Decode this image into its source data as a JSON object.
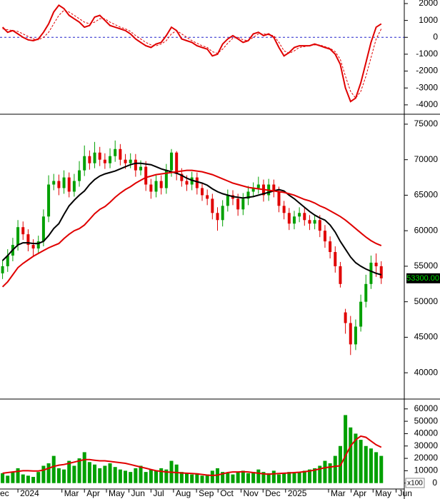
{
  "chart_data": [
    {
      "type": "line",
      "ylim": [
        -4470,
        2210
      ],
      "yticks": [
        2000,
        1000,
        0,
        -1000,
        -2000,
        -3000,
        -4000
      ],
      "zero_line": true,
      "zero_color": "#2222cc",
      "series": [
        {
          "color": "#e00000",
          "dashed": false,
          "values": [
            600,
            300,
            400,
            200,
            0,
            -150,
            -200,
            -100,
            300,
            800,
            1500,
            1900,
            1700,
            1300,
            1100,
            900,
            600,
            700,
            1200,
            1300,
            1000,
            700,
            600,
            500,
            400,
            200,
            -100,
            -300,
            -500,
            -600,
            -400,
            -300,
            100,
            600,
            400,
            -100,
            -200,
            -300,
            -500,
            -600,
            -700,
            -1100,
            -1000,
            -400,
            -100,
            100,
            -100,
            -300,
            -200,
            200,
            300,
            100,
            200,
            0,
            -600,
            -1100,
            -900,
            -600,
            -500,
            -500,
            -500,
            -400,
            -500,
            -600,
            -700,
            -1000,
            -1600,
            -3000,
            -3800,
            -3600,
            -2700,
            -1500,
            -300,
            600,
            800
          ]
        },
        {
          "color": "#e00000",
          "dashed": true,
          "values": [
            500,
            450,
            400,
            350,
            200,
            50,
            -100,
            -150,
            0,
            300,
            800,
            1300,
            1600,
            1500,
            1300,
            1100,
            900,
            800,
            900,
            1100,
            1100,
            900,
            750,
            600,
            500,
            350,
            100,
            -100,
            -300,
            -450,
            -500,
            -400,
            -200,
            200,
            400,
            200,
            0,
            -200,
            -350,
            -500,
            -600,
            -850,
            -950,
            -700,
            -350,
            -50,
            0,
            -150,
            -200,
            0,
            200,
            200,
            150,
            100,
            -300,
            -800,
            -950,
            -800,
            -600,
            -550,
            -500,
            -450,
            -450,
            -550,
            -650,
            -850,
            -1300,
            -2300,
            -3200,
            -3600,
            -3200,
            -2300,
            -1200,
            -100,
            500
          ]
        }
      ]
    },
    {
      "type": "candlestick",
      "ylim": [
        36500,
        76200
      ],
      "yticks": [
        40000,
        45000,
        50000,
        55000,
        60000,
        65000,
        70000,
        75000
      ],
      "up_color": "#00a000",
      "down_color": "#e00000",
      "last_label": {
        "value": 53300,
        "label": "53300.00"
      },
      "open": [
        54000,
        55000,
        56500,
        58000,
        60500,
        59500,
        58000,
        57500,
        58500,
        62000,
        66500,
        67000,
        66000,
        67500,
        65500,
        67000,
        68500,
        70500,
        69500,
        71000,
        70000,
        69500,
        70500,
        71500,
        70000,
        69500,
        70000,
        68500,
        69000,
        66500,
        65500,
        67000,
        66000,
        68500,
        71000,
        68000,
        67000,
        66500,
        67500,
        66000,
        65000,
        64500,
        62500,
        61500,
        63500,
        65000,
        64500,
        63000,
        64500,
        65500,
        66000,
        66500,
        65000,
        66500,
        65500,
        63500,
        62500,
        61000,
        62000,
        62500,
        61500,
        61000,
        61500,
        60000,
        58500,
        57000,
        55000,
        48500,
        47000,
        44000,
        46500,
        50000,
        52500,
        55500,
        55000
      ],
      "high": [
        55900,
        57400,
        59000,
        61500,
        61300,
        60200,
        58800,
        59300,
        63000,
        67800,
        68000,
        67900,
        68500,
        68200,
        68000,
        69800,
        72000,
        71300,
        72500,
        71800,
        70900,
        71600,
        72700,
        72200,
        70800,
        70900,
        70800,
        69900,
        69800,
        67300,
        67800,
        67800,
        69400,
        71500,
        71200,
        68800,
        67800,
        68300,
        68200,
        66800,
        65800,
        65200,
        63300,
        64300,
        65800,
        65700,
        65200,
        65300,
        66300,
        66800,
        67600,
        67200,
        67300,
        67200,
        66200,
        64200,
        63200,
        62800,
        63300,
        63200,
        62200,
        62300,
        62200,
        60800,
        59200,
        57800,
        55600,
        49000,
        48000,
        47500,
        51000,
        53800,
        56500,
        56800,
        55700
      ],
      "low": [
        53200,
        54200,
        55700,
        57200,
        58700,
        57100,
        56500,
        56800,
        57800,
        61200,
        65700,
        65000,
        65200,
        64700,
        64800,
        66200,
        67700,
        68600,
        68800,
        69100,
        68700,
        68800,
        69700,
        69200,
        68700,
        68800,
        67600,
        67800,
        65600,
        64500,
        64700,
        65100,
        65200,
        67600,
        67100,
        66200,
        65600,
        65700,
        65100,
        64200,
        63600,
        61600,
        60000,
        60600,
        62700,
        63600,
        62100,
        62200,
        63600,
        64700,
        65200,
        64100,
        64200,
        64700,
        62600,
        61600,
        60100,
        60200,
        61200,
        60700,
        60100,
        60200,
        59100,
        57600,
        56100,
        54100,
        52000,
        45500,
        42500,
        43200,
        45800,
        49200,
        51800,
        53500,
        52500
      ],
      "close": [
        55000,
        56500,
        58000,
        60500,
        59500,
        58000,
        57500,
        58500,
        62000,
        66500,
        67000,
        66000,
        67500,
        65500,
        67000,
        68500,
        70500,
        69500,
        71000,
        70000,
        69500,
        70500,
        71500,
        70000,
        69500,
        70000,
        68500,
        69000,
        66500,
        65500,
        67000,
        66000,
        68500,
        71000,
        68000,
        67000,
        66500,
        67500,
        66000,
        65000,
        64500,
        62500,
        61500,
        63500,
        65000,
        64500,
        63000,
        64500,
        65500,
        66000,
        66500,
        65000,
        66500,
        65500,
        63500,
        62500,
        61000,
        62000,
        62500,
        61500,
        61000,
        61500,
        60000,
        58500,
        57000,
        55000,
        52500,
        47000,
        44000,
        46500,
        50000,
        52500,
        55500,
        55000,
        53300
      ],
      "series": [
        {
          "color": "#000000",
          "values": [
            55800,
            56500,
            57300,
            58000,
            58300,
            58300,
            58200,
            58200,
            58500,
            59300,
            60300,
            61000,
            62300,
            63500,
            64300,
            65000,
            65600,
            66500,
            67200,
            67700,
            68000,
            68200,
            68400,
            68700,
            69000,
            69300,
            69500,
            69500,
            69400,
            69300,
            69000,
            68700,
            68500,
            68300,
            68100,
            67800,
            67400,
            67100,
            66900,
            66700,
            66400,
            65900,
            65500,
            65200,
            65000,
            64800,
            64700,
            64600,
            64700,
            64800,
            65000,
            65200,
            65400,
            65600,
            65800,
            65600,
            65000,
            64500,
            63900,
            63300,
            62700,
            62200,
            61800,
            61500,
            60800,
            59800,
            58500,
            57400,
            56300,
            55500,
            55000,
            54600,
            54300,
            54000,
            53800
          ]
        },
        {
          "color": "#e00000",
          "values": [
            52100,
            52800,
            53800,
            54800,
            55400,
            55900,
            56400,
            56800,
            57200,
            57600,
            57900,
            58200,
            58900,
            59500,
            60000,
            60300,
            60800,
            61600,
            62400,
            63000,
            63400,
            64000,
            64700,
            65300,
            65800,
            66200,
            66700,
            67100,
            67500,
            67700,
            67900,
            68000,
            68100,
            68200,
            68300,
            68400,
            68500,
            68500,
            68400,
            68300,
            68100,
            67900,
            67600,
            67300,
            67000,
            66700,
            66500,
            66300,
            66100,
            66000,
            65900,
            65800,
            65700,
            65600,
            65500,
            65400,
            65200,
            65000,
            64700,
            64400,
            64200,
            63900,
            63500,
            63200,
            62800,
            62400,
            62000,
            61500,
            60900,
            60300,
            59700,
            59100,
            58600,
            58200,
            57900
          ]
        }
      ]
    },
    {
      "type": "bar",
      "ylim": [
        -4200,
        66800
      ],
      "yticks": [
        0,
        10000,
        20000,
        30000,
        40000,
        50000,
        60000
      ],
      "unit": "x100",
      "color": "#00a000",
      "values": [
        8000,
        6000,
        9000,
        12000,
        7000,
        6000,
        5000,
        9000,
        14000,
        16000,
        22000,
        12000,
        11000,
        18000,
        14000,
        20000,
        25000,
        17000,
        15000,
        12000,
        14000,
        16000,
        13000,
        11000,
        10000,
        9000,
        12000,
        14000,
        9000,
        11000,
        10000,
        12000,
        11000,
        18000,
        15000,
        9000,
        8000,
        7000,
        8000,
        6000,
        7000,
        10000,
        12000,
        9000,
        8000,
        7000,
        9000,
        10000,
        8000,
        9000,
        11000,
        9000,
        8000,
        10000,
        7000,
        8000,
        9000,
        8000,
        9000,
        10000,
        11000,
        12000,
        14000,
        18000,
        16000,
        22000,
        30000,
        55000,
        45000,
        40000,
        35000,
        30000,
        28000,
        25000,
        22000
      ],
      "series": [
        {
          "color": "#e00000",
          "values": [
            8000,
            8500,
            9000,
            9500,
            10000,
            10000,
            9800,
            9800,
            10500,
            12000,
            13500,
            14500,
            15000,
            16000,
            17000,
            18000,
            19000,
            19000,
            18500,
            18000,
            18000,
            17500,
            17000,
            16500,
            16000,
            15000,
            14000,
            13000,
            12000,
            11000,
            10000,
            9500,
            9000,
            8800,
            8500,
            8200,
            8000,
            7800,
            7500,
            7000,
            6500,
            6200,
            6500,
            7500,
            8500,
            9000,
            9000,
            9200,
            9000,
            8500,
            8000,
            7500,
            7200,
            7500,
            7800,
            8000,
            8200,
            8500,
            8800,
            9200,
            9800,
            10500,
            11500,
            12500,
            13000,
            13500,
            14000,
            22000,
            30000,
            35000,
            38000,
            37000,
            34000,
            31000,
            29000
          ]
        }
      ],
      "xlim": [
        -0.5,
        78.5
      ],
      "xticks": [
        {
          "value": -1.4,
          "label": "ec"
        },
        {
          "value": 3,
          "label": "2024"
        },
        {
          "value": 11.6,
          "label": "Mar"
        },
        {
          "value": 16,
          "label": "Apr"
        },
        {
          "value": 20.3,
          "label": "May"
        },
        {
          "value": 24.7,
          "label": "Jun"
        },
        {
          "value": 29,
          "label": "Jul"
        },
        {
          "value": 33.4,
          "label": "Aug"
        },
        {
          "value": 37.9,
          "label": "Sep"
        },
        {
          "value": 42.1,
          "label": "Oct"
        },
        {
          "value": 46.6,
          "label": "Nov"
        },
        {
          "value": 50.9,
          "label": "Dec"
        },
        {
          "value": 55.3,
          "label": "2025"
        },
        {
          "value": 63.7,
          "label": "Mar"
        },
        {
          "value": 68.1,
          "label": "Apr"
        },
        {
          "value": 72.4,
          "label": "May"
        },
        {
          "value": 76.9,
          "label": "Jun"
        }
      ]
    }
  ]
}
